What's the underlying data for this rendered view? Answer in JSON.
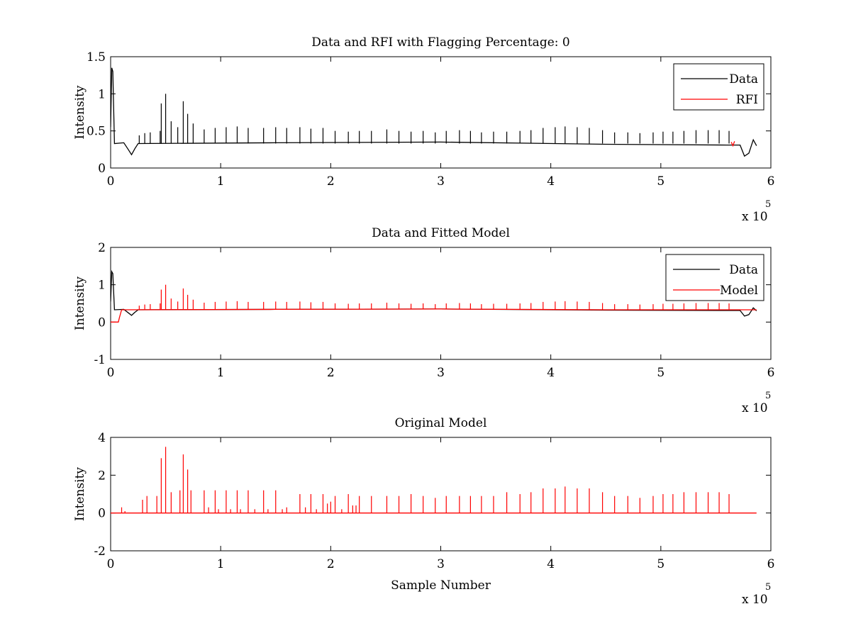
{
  "chart_data": [
    {
      "type": "line",
      "title": "Data and RFI with Flagging Percentage: 0",
      "xlabel": "",
      "ylabel": "Intensity",
      "xlim": [
        0,
        6
      ],
      "ylim": [
        0,
        1.5
      ],
      "xticks": [
        "0",
        "1",
        "2",
        "3",
        "4",
        "5",
        "6"
      ],
      "yticks": [
        "0",
        "0.5",
        "1",
        "1.5"
      ],
      "x_multiplier": {
        "base": "x 10",
        "exponent": "5"
      },
      "legend": {
        "position": "top-right",
        "entries": [
          "Data",
          "RFI"
        ]
      },
      "series": [
        {
          "name": "Data",
          "color": "#000000",
          "baseline": 0.33,
          "points": [
            [
              0,
              0.55
            ],
            [
              0.01,
              1.35
            ],
            [
              0.02,
              1.3
            ],
            [
              0.035,
              0.33
            ],
            [
              0.12,
              0.34
            ],
            [
              0.16,
              0.25
            ],
            [
              0.19,
              0.18
            ],
            [
              0.22,
              0.26
            ],
            [
              0.25,
              0.33
            ],
            [
              1.5,
              0.34
            ],
            [
              3.0,
              0.35
            ],
            [
              4.5,
              0.32
            ],
            [
              5.6,
              0.31
            ],
            [
              5.72,
              0.31
            ],
            [
              5.76,
              0.16
            ],
            [
              5.8,
              0.2
            ],
            [
              5.84,
              0.38
            ],
            [
              5.87,
              0.3
            ]
          ],
          "spikes": [
            [
              0.26,
              0.44
            ],
            [
              0.31,
              0.47
            ],
            [
              0.36,
              0.48
            ],
            [
              0.45,
              0.5
            ],
            [
              0.46,
              0.87
            ],
            [
              0.5,
              1.0
            ],
            [
              0.55,
              0.63
            ],
            [
              0.61,
              0.55
            ],
            [
              0.66,
              0.9
            ],
            [
              0.7,
              0.73
            ],
            [
              0.75,
              0.6
            ],
            [
              0.85,
              0.52
            ],
            [
              0.95,
              0.54
            ],
            [
              1.05,
              0.55
            ],
            [
              1.15,
              0.56
            ],
            [
              1.25,
              0.54
            ],
            [
              1.39,
              0.54
            ],
            [
              1.5,
              0.55
            ],
            [
              1.6,
              0.54
            ],
            [
              1.72,
              0.55
            ],
            [
              1.82,
              0.53
            ],
            [
              1.93,
              0.54
            ],
            [
              2.04,
              0.5
            ],
            [
              2.16,
              0.49
            ],
            [
              2.26,
              0.5
            ],
            [
              2.37,
              0.5
            ],
            [
              2.51,
              0.52
            ],
            [
              2.62,
              0.5
            ],
            [
              2.73,
              0.49
            ],
            [
              2.84,
              0.5
            ],
            [
              2.95,
              0.48
            ],
            [
              3.05,
              0.5
            ],
            [
              3.17,
              0.51
            ],
            [
              3.27,
              0.5
            ],
            [
              3.37,
              0.48
            ],
            [
              3.48,
              0.49
            ],
            [
              3.6,
              0.49
            ],
            [
              3.72,
              0.5
            ],
            [
              3.82,
              0.51
            ],
            [
              3.93,
              0.54
            ],
            [
              4.04,
              0.55
            ],
            [
              4.13,
              0.56
            ],
            [
              4.24,
              0.55
            ],
            [
              4.35,
              0.54
            ],
            [
              4.47,
              0.51
            ],
            [
              4.58,
              0.48
            ],
            [
              4.7,
              0.48
            ],
            [
              4.81,
              0.47
            ],
            [
              4.93,
              0.48
            ],
            [
              5.02,
              0.49
            ],
            [
              5.11,
              0.49
            ],
            [
              5.21,
              0.5
            ],
            [
              5.32,
              0.51
            ],
            [
              5.43,
              0.51
            ],
            [
              5.53,
              0.51
            ],
            [
              5.62,
              0.5
            ]
          ]
        },
        {
          "name": "RFI",
          "color": "#ff0000",
          "points": [
            [
              5.64,
              0.35
            ],
            [
              5.655,
              0.3
            ],
            [
              5.67,
              0.36
            ]
          ]
        }
      ]
    },
    {
      "type": "line",
      "title": "Data and Fitted Model",
      "xlabel": "",
      "ylabel": "Intensity",
      "xlim": [
        0,
        6
      ],
      "ylim": [
        -1,
        2
      ],
      "xticks": [
        "0",
        "1",
        "2",
        "3",
        "4",
        "5",
        "6"
      ],
      "yticks": [
        "-1",
        "0",
        "1",
        "2"
      ],
      "x_multiplier": {
        "base": "x 10",
        "exponent": "5"
      },
      "legend": {
        "position": "top-right",
        "entries": [
          "Data",
          "Model"
        ]
      },
      "series": [
        {
          "name": "Data",
          "color": "#000000",
          "baseline": 0.33,
          "points": [
            [
              0,
              0.55
            ],
            [
              0.01,
              1.35
            ],
            [
              0.02,
              1.3
            ],
            [
              0.035,
              0.33
            ],
            [
              0.12,
              0.34
            ],
            [
              0.16,
              0.25
            ],
            [
              0.19,
              0.18
            ],
            [
              0.22,
              0.26
            ],
            [
              0.25,
              0.33
            ],
            [
              1.5,
              0.34
            ],
            [
              3.0,
              0.35
            ],
            [
              4.5,
              0.32
            ],
            [
              5.6,
              0.31
            ],
            [
              5.72,
              0.31
            ],
            [
              5.76,
              0.16
            ],
            [
              5.8,
              0.2
            ],
            [
              5.84,
              0.38
            ],
            [
              5.87,
              0.3
            ]
          ]
        },
        {
          "name": "Model",
          "color": "#ff0000",
          "baseline": 0.34,
          "points": [
            [
              0,
              0.0
            ],
            [
              0.07,
              0.0
            ],
            [
              0.08,
              0.12
            ],
            [
              0.1,
              0.33
            ],
            [
              1.5,
              0.34
            ],
            [
              3.0,
              0.35
            ],
            [
              4.5,
              0.33
            ],
            [
              5.87,
              0.33
            ]
          ],
          "spikes": [
            [
              0.26,
              0.44
            ],
            [
              0.31,
              0.47
            ],
            [
              0.36,
              0.48
            ],
            [
              0.45,
              0.5
            ],
            [
              0.46,
              0.87
            ],
            [
              0.5,
              1.0
            ],
            [
              0.55,
              0.63
            ],
            [
              0.61,
              0.55
            ],
            [
              0.66,
              0.9
            ],
            [
              0.7,
              0.73
            ],
            [
              0.75,
              0.6
            ],
            [
              0.85,
              0.52
            ],
            [
              0.95,
              0.54
            ],
            [
              1.05,
              0.55
            ],
            [
              1.15,
              0.56
            ],
            [
              1.25,
              0.54
            ],
            [
              1.39,
              0.54
            ],
            [
              1.5,
              0.55
            ],
            [
              1.6,
              0.54
            ],
            [
              1.72,
              0.55
            ],
            [
              1.82,
              0.53
            ],
            [
              1.93,
              0.54
            ],
            [
              2.04,
              0.5
            ],
            [
              2.16,
              0.49
            ],
            [
              2.26,
              0.5
            ],
            [
              2.37,
              0.5
            ],
            [
              2.51,
              0.52
            ],
            [
              2.62,
              0.5
            ],
            [
              2.73,
              0.49
            ],
            [
              2.84,
              0.5
            ],
            [
              2.95,
              0.48
            ],
            [
              3.05,
              0.5
            ],
            [
              3.17,
              0.51
            ],
            [
              3.27,
              0.5
            ],
            [
              3.37,
              0.48
            ],
            [
              3.48,
              0.49
            ],
            [
              3.6,
              0.49
            ],
            [
              3.72,
              0.5
            ],
            [
              3.82,
              0.51
            ],
            [
              3.93,
              0.54
            ],
            [
              4.04,
              0.55
            ],
            [
              4.13,
              0.56
            ],
            [
              4.24,
              0.55
            ],
            [
              4.35,
              0.54
            ],
            [
              4.47,
              0.51
            ],
            [
              4.58,
              0.48
            ],
            [
              4.7,
              0.48
            ],
            [
              4.81,
              0.47
            ],
            [
              4.93,
              0.48
            ],
            [
              5.02,
              0.49
            ],
            [
              5.11,
              0.49
            ],
            [
              5.21,
              0.5
            ],
            [
              5.32,
              0.51
            ],
            [
              5.43,
              0.51
            ],
            [
              5.53,
              0.51
            ],
            [
              5.62,
              0.5
            ]
          ]
        }
      ]
    },
    {
      "type": "line",
      "title": "Original Model",
      "xlabel": "Sample Number",
      "ylabel": "Intensity",
      "xlim": [
        0,
        6
      ],
      "ylim": [
        -2,
        4
      ],
      "xticks": [
        "0",
        "1",
        "2",
        "3",
        "4",
        "5",
        "6"
      ],
      "yticks": [
        "-2",
        "0",
        "2",
        "4"
      ],
      "x_multiplier": {
        "base": "x 10",
        "exponent": "5"
      },
      "legend": null,
      "series": [
        {
          "name": "",
          "color": "#ff0000",
          "baseline": 0.0,
          "points": [
            [
              0,
              0.0
            ],
            [
              5.87,
              0.0
            ]
          ],
          "spikes": [
            [
              0.1,
              0.3
            ],
            [
              0.13,
              0.1
            ],
            [
              0.29,
              0.7
            ],
            [
              0.33,
              0.9
            ],
            [
              0.42,
              0.9
            ],
            [
              0.46,
              2.9
            ],
            [
              0.5,
              3.5
            ],
            [
              0.55,
              1.1
            ],
            [
              0.63,
              1.2
            ],
            [
              0.66,
              3.1
            ],
            [
              0.7,
              2.3
            ],
            [
              0.73,
              1.2
            ],
            [
              0.85,
              1.2
            ],
            [
              0.89,
              0.3
            ],
            [
              0.95,
              1.2
            ],
            [
              0.98,
              0.2
            ],
            [
              1.05,
              1.2
            ],
            [
              1.09,
              0.2
            ],
            [
              1.15,
              1.2
            ],
            [
              1.18,
              0.2
            ],
            [
              1.25,
              1.2
            ],
            [
              1.31,
              0.2
            ],
            [
              1.39,
              1.2
            ],
            [
              1.43,
              0.2
            ],
            [
              1.5,
              1.2
            ],
            [
              1.56,
              0.2
            ],
            [
              1.6,
              0.3
            ],
            [
              1.72,
              1.0
            ],
            [
              1.77,
              0.3
            ],
            [
              1.82,
              1.0
            ],
            [
              1.87,
              0.2
            ],
            [
              1.93,
              1.0
            ],
            [
              1.97,
              0.5
            ],
            [
              2.0,
              0.6
            ],
            [
              2.04,
              0.9
            ],
            [
              2.1,
              0.2
            ],
            [
              2.16,
              1.0
            ],
            [
              2.2,
              0.4
            ],
            [
              2.23,
              0.4
            ],
            [
              2.26,
              0.9
            ],
            [
              2.37,
              0.9
            ],
            [
              2.51,
              0.9
            ],
            [
              2.62,
              0.9
            ],
            [
              2.73,
              1.0
            ],
            [
              2.84,
              0.9
            ],
            [
              2.95,
              0.8
            ],
            [
              3.05,
              0.9
            ],
            [
              3.17,
              0.9
            ],
            [
              3.27,
              0.9
            ],
            [
              3.37,
              0.9
            ],
            [
              3.48,
              0.9
            ],
            [
              3.6,
              1.1
            ],
            [
              3.72,
              1.0
            ],
            [
              3.82,
              1.1
            ],
            [
              3.93,
              1.3
            ],
            [
              4.04,
              1.3
            ],
            [
              4.13,
              1.4
            ],
            [
              4.24,
              1.3
            ],
            [
              4.35,
              1.3
            ],
            [
              4.47,
              1.1
            ],
            [
              4.58,
              0.9
            ],
            [
              4.7,
              0.9
            ],
            [
              4.81,
              0.8
            ],
            [
              4.93,
              0.9
            ],
            [
              5.02,
              1.0
            ],
            [
              5.11,
              1.0
            ],
            [
              5.21,
              1.1
            ],
            [
              5.32,
              1.1
            ],
            [
              5.43,
              1.1
            ],
            [
              5.53,
              1.1
            ],
            [
              5.62,
              1.0
            ]
          ]
        }
      ]
    }
  ]
}
